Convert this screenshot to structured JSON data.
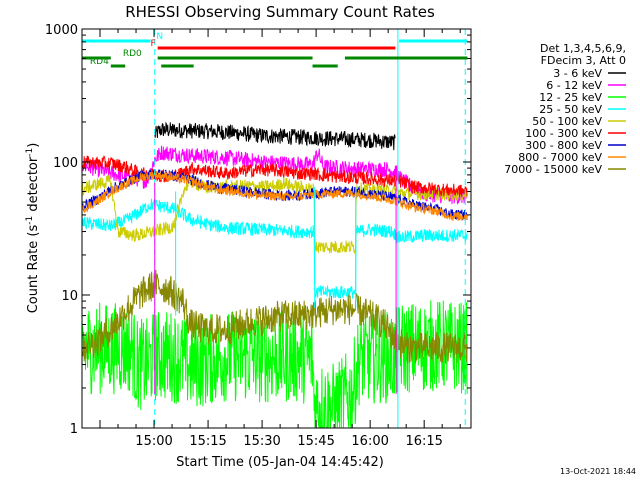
{
  "chart_data": {
    "type": "line",
    "title": "RHESSI Observing Summary Count Rates",
    "xlabel": "Start Time (05-Jan-04 14:45:42)",
    "ylabel_parts": [
      "Count Rate (s",
      "-1",
      " detector",
      "-1",
      ")"
    ],
    "yscale": "log",
    "ylim": [
      1,
      1000
    ],
    "y_ticks": [
      {
        "value": 1,
        "label": "1"
      },
      {
        "value": 10,
        "label": "10"
      },
      {
        "value": 100,
        "label": "100"
      },
      {
        "value": 1000,
        "label": "1000"
      }
    ],
    "xlim_min": [
      40,
      148
    ],
    "x_ticks": [
      {
        "value": 60,
        "label": "15:00"
      },
      {
        "value": 75,
        "label": "15:15"
      },
      {
        "value": 90,
        "label": "15:30"
      },
      {
        "value": 105,
        "label": "15:45"
      },
      {
        "value": 120,
        "label": "16:00"
      },
      {
        "value": 135,
        "label": "16:15"
      }
    ],
    "legend_header": [
      "Det 1,3,4,5,6,9,",
      "FDecim 3, Att 0"
    ],
    "series": [
      {
        "name": "3 - 6 keV",
        "color": "#000000",
        "noise": 0.06,
        "points": [
          [
            60.2,
            160
          ],
          [
            62,
            175
          ],
          [
            70,
            172
          ],
          [
            80,
            168
          ],
          [
            90,
            158
          ],
          [
            100,
            154
          ],
          [
            110,
            150
          ],
          [
            120,
            146
          ],
          [
            127,
            140
          ]
        ]
      },
      {
        "name": "6 - 12 keV",
        "color": "#ff00ff",
        "noise": 0.06,
        "points": [
          [
            40,
            95
          ],
          [
            50,
            80
          ],
          [
            58,
            72
          ],
          [
            60.2,
            105
          ],
          [
            62,
            118
          ],
          [
            70,
            112
          ],
          [
            80,
            108
          ],
          [
            90,
            100
          ],
          [
            104,
            95
          ],
          [
            105.5,
            118
          ],
          [
            107,
            92
          ],
          [
            115,
            89
          ],
          [
            125,
            88
          ],
          [
            127,
            85
          ],
          [
            129,
            72
          ],
          [
            135,
            58
          ],
          [
            142,
            55
          ],
          [
            147,
            55
          ]
        ]
      },
      {
        "name": "12 - 25 keV",
        "color": "#00ff00",
        "noise": 0.35,
        "points": [
          [
            40,
            4
          ],
          [
            50,
            4
          ],
          [
            54,
            4
          ],
          [
            55,
            3
          ],
          [
            58,
            3
          ],
          [
            60.2,
            3.5
          ],
          [
            65,
            3.5
          ],
          [
            68,
            3.2
          ],
          [
            70,
            3
          ],
          [
            80,
            3.5
          ],
          [
            90,
            3.4
          ],
          [
            104,
            3.4
          ],
          [
            104.5,
            1.5
          ],
          [
            110,
            1.4
          ],
          [
            115,
            1.8
          ],
          [
            117,
            3.4
          ],
          [
            127,
            3.4
          ],
          [
            128,
            4
          ],
          [
            140,
            4.2
          ],
          [
            147,
            4
          ]
        ]
      },
      {
        "name": "25 - 50 keV",
        "color": "#00ffff",
        "noise": 0.05,
        "points": [
          [
            40,
            35
          ],
          [
            48,
            33
          ],
          [
            52,
            36
          ],
          [
            56,
            42
          ],
          [
            59,
            48
          ],
          [
            63,
            46
          ],
          [
            66,
            44
          ],
          [
            70,
            37
          ],
          [
            75,
            34
          ],
          [
            80,
            32
          ],
          [
            90,
            31
          ],
          [
            100,
            30
          ],
          [
            104.5,
            30
          ],
          [
            104.6,
            10.5
          ],
          [
            116,
            10.5
          ],
          [
            116.1,
            30
          ],
          [
            120,
            31
          ],
          [
            126,
            30
          ],
          [
            128,
            27
          ],
          [
            135,
            28
          ],
          [
            147,
            28
          ]
        ]
      },
      {
        "name": "50 - 100 keV",
        "color": "#cccc00",
        "noise": 0.05,
        "points": [
          [
            40,
            62
          ],
          [
            44,
            68
          ],
          [
            48,
            72
          ],
          [
            50,
            30
          ],
          [
            55,
            28
          ],
          [
            60,
            30
          ],
          [
            64,
            32
          ],
          [
            66,
            34
          ],
          [
            68,
            60
          ],
          [
            70,
            72
          ],
          [
            74,
            64
          ],
          [
            80,
            65
          ],
          [
            86,
            66
          ],
          [
            90,
            65
          ],
          [
            94,
            66
          ],
          [
            96,
            70
          ],
          [
            98,
            66
          ],
          [
            104.5,
            62
          ],
          [
            104.6,
            23
          ],
          [
            116,
            23
          ],
          [
            116.1,
            63
          ],
          [
            120,
            62
          ],
          [
            126,
            60
          ],
          [
            130,
            58
          ],
          [
            147,
            57
          ]
        ]
      },
      {
        "name": "100 - 300 keV",
        "color": "#ff0000",
        "noise": 0.05,
        "points": [
          [
            40,
            100
          ],
          [
            48,
            98
          ],
          [
            52,
            92
          ],
          [
            56,
            82
          ],
          [
            60,
            80
          ],
          [
            64,
            78
          ],
          [
            68,
            82
          ],
          [
            70,
            90
          ],
          [
            76,
            85
          ],
          [
            80,
            82
          ],
          [
            86,
            86
          ],
          [
            90,
            88
          ],
          [
            96,
            85
          ],
          [
            100,
            82
          ],
          [
            104.5,
            82
          ],
          [
            106,
            80
          ],
          [
            110,
            78
          ],
          [
            116,
            76
          ],
          [
            120,
            75
          ],
          [
            124,
            73
          ],
          [
            128,
            72
          ],
          [
            132,
            65
          ],
          [
            140,
            62
          ],
          [
            147,
            60
          ]
        ]
      },
      {
        "name": "300 - 800 keV",
        "color": "#0000cc",
        "noise": 0.04,
        "points": [
          [
            40,
            46
          ],
          [
            44,
            52
          ],
          [
            48,
            62
          ],
          [
            52,
            70
          ],
          [
            56,
            78
          ],
          [
            60,
            82
          ],
          [
            64,
            80
          ],
          [
            70,
            74
          ],
          [
            74,
            68
          ],
          [
            78,
            64
          ],
          [
            82,
            62
          ],
          [
            86,
            60
          ],
          [
            90,
            58
          ],
          [
            96,
            56
          ],
          [
            100,
            56
          ],
          [
            104,
            58
          ],
          [
            110,
            60
          ],
          [
            116,
            60
          ],
          [
            120,
            58
          ],
          [
            126,
            54
          ],
          [
            132,
            48
          ],
          [
            138,
            44
          ],
          [
            143,
            40
          ],
          [
            147,
            40
          ]
        ]
      },
      {
        "name": "800 - 7000 keV",
        "color": "#ff8800",
        "noise": 0.035,
        "points": [
          [
            40,
            44
          ],
          [
            44,
            50
          ],
          [
            48,
            60
          ],
          [
            52,
            68
          ],
          [
            56,
            76
          ],
          [
            60,
            80
          ],
          [
            64,
            78
          ],
          [
            70,
            72
          ],
          [
            74,
            66
          ],
          [
            78,
            62
          ],
          [
            82,
            60
          ],
          [
            86,
            58
          ],
          [
            90,
            56
          ],
          [
            96,
            55
          ],
          [
            100,
            55
          ],
          [
            104,
            57
          ],
          [
            110,
            58
          ],
          [
            116,
            58
          ],
          [
            120,
            56
          ],
          [
            126,
            52
          ],
          [
            132,
            46
          ],
          [
            138,
            43
          ],
          [
            143,
            39
          ],
          [
            147,
            39
          ]
        ]
      },
      {
        "name": "7000 - 15000 keV",
        "color": "#888800",
        "noise": 0.12,
        "points": [
          [
            40,
            4
          ],
          [
            44,
            4.5
          ],
          [
            48,
            5.5
          ],
          [
            52,
            7.5
          ],
          [
            56,
            10
          ],
          [
            60,
            12
          ],
          [
            64,
            11
          ],
          [
            68,
            9
          ],
          [
            70,
            6
          ],
          [
            74,
            5.5
          ],
          [
            80,
            5.5
          ],
          [
            86,
            6.2
          ],
          [
            90,
            6.5
          ],
          [
            96,
            7
          ],
          [
            100,
            7
          ],
          [
            104,
            7.2
          ],
          [
            110,
            7.8
          ],
          [
            116,
            7.8
          ],
          [
            120,
            7
          ],
          [
            124,
            6
          ],
          [
            126,
            5
          ],
          [
            130,
            4
          ],
          [
            140,
            4
          ],
          [
            147,
            4
          ]
        ]
      }
    ],
    "vertical_lines": [
      {
        "value": 60.2,
        "style": "dashed",
        "color": "#00ffff"
      },
      {
        "value": 127.7,
        "style": "solid",
        "color": "#00ffff"
      },
      {
        "value": 146.4,
        "style": "dashed",
        "color": "#00ffff"
      },
      {
        "value": 60.2,
        "style": "solid",
        "color": "#ff00ff",
        "from": 1.8,
        "to": 70
      },
      {
        "value": 127.2,
        "style": "solid",
        "color": "#ff00ff",
        "from": 1.8,
        "to": 80
      },
      {
        "value": 66,
        "style": "solid",
        "color": "#00ffff",
        "from": 7,
        "to": 60
      },
      {
        "value": 104.6,
        "style": "solid",
        "color": "#00ffff",
        "from": 8,
        "to": 65
      },
      {
        "value": 116,
        "style": "solid",
        "color": "#00ffff",
        "from": 8,
        "to": 65
      }
    ],
    "state_bars": [
      {
        "label": "N",
        "color": "#00ffff",
        "row": 0,
        "segments": [
          [
            40,
            59
          ],
          [
            128,
            147
          ]
        ]
      },
      {
        "label": "F",
        "color": "#ff0000",
        "row": 1,
        "segments": [
          [
            61,
            127
          ]
        ]
      },
      {
        "label": "RD0",
        "color": "#008800",
        "row": 2,
        "segments": [
          [
            40,
            48
          ],
          [
            61,
            104
          ],
          [
            113,
            147
          ]
        ]
      },
      {
        "label": "RD4",
        "color": "#008800",
        "row": 3,
        "segments": [
          [
            48,
            52
          ],
          [
            62,
            71
          ],
          [
            104,
            111
          ]
        ]
      }
    ],
    "timestamp": "13-Oct-2021 18:44"
  }
}
